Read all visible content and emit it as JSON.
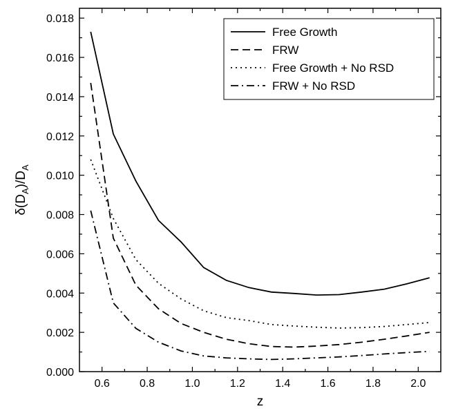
{
  "chart_data": {
    "type": "line",
    "title": "",
    "xlabel": "z",
    "ylabel_main": "δ(D",
    "ylabel_sub1": "A",
    "ylabel_mid": ")/D",
    "ylabel_sub2": "A",
    "xlim": [
      0.5,
      2.1
    ],
    "ylim": [
      0.0,
      0.0185
    ],
    "xticks": [
      0.6,
      0.8,
      1.0,
      1.2,
      1.4,
      1.6,
      1.8,
      2.0
    ],
    "xtick_labels": [
      "0.6",
      "0.8",
      "1.0",
      "1.2",
      "1.4",
      "1.6",
      "1.8",
      "2.0"
    ],
    "yticks": [
      0.0,
      0.002,
      0.004,
      0.006,
      0.008,
      0.01,
      0.012,
      0.014,
      0.016,
      0.018
    ],
    "ytick_labels": [
      "0.000",
      "0.002",
      "0.004",
      "0.006",
      "0.008",
      "0.010",
      "0.012",
      "0.014",
      "0.016",
      "0.018"
    ],
    "grid": false,
    "legend_position": "top-right",
    "x": [
      0.55,
      0.65,
      0.75,
      0.85,
      0.95,
      1.05,
      1.15,
      1.25,
      1.35,
      1.45,
      1.55,
      1.65,
      1.75,
      1.85,
      1.95,
      2.05
    ],
    "series": [
      {
        "name": "Free Growth",
        "style": "solid",
        "values": [
          0.0173,
          0.0121,
          0.0097,
          0.0077,
          0.0066,
          0.0053,
          0.00465,
          0.00428,
          0.00405,
          0.00398,
          0.0039,
          0.00392,
          0.00405,
          0.0042,
          0.00447,
          0.00478
        ]
      },
      {
        "name": "FRW",
        "style": "dashed",
        "values": [
          0.0147,
          0.0068,
          0.0044,
          0.0032,
          0.00245,
          0.002,
          0.00165,
          0.00142,
          0.00128,
          0.00125,
          0.0013,
          0.00138,
          0.0015,
          0.00165,
          0.00182,
          0.002
        ]
      },
      {
        "name": "Free Growth + No RSD",
        "style": "dotted",
        "values": [
          0.0108,
          0.0078,
          0.0057,
          0.0045,
          0.0037,
          0.0031,
          0.00275,
          0.0026,
          0.0024,
          0.00232,
          0.00226,
          0.00222,
          0.00224,
          0.0023,
          0.0024,
          0.0025
        ]
      },
      {
        "name": "FRW + No RSD",
        "style": "dashdot",
        "values": [
          0.0082,
          0.0035,
          0.0022,
          0.0015,
          0.00105,
          0.0008,
          0.0007,
          0.00065,
          0.00062,
          0.00065,
          0.0007,
          0.00075,
          0.00082,
          0.0009,
          0.00097,
          0.00103
        ]
      }
    ]
  }
}
